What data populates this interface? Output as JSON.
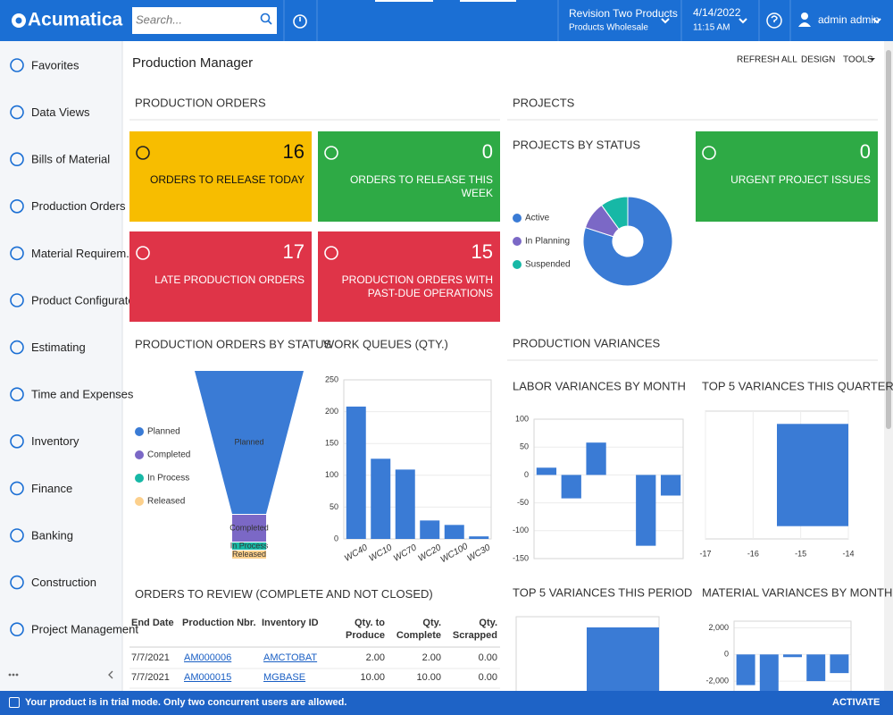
{
  "topbar": {
    "logo": "Acumatica",
    "search_placeholder": "Search...",
    "company": "Revision Two Products",
    "branch": "Products Wholesale",
    "date": "4/14/2022",
    "time": "11:15 AM",
    "user": "admin admin"
  },
  "sidebar": {
    "items": [
      "Favorites",
      "Data Views",
      "Bills of Material",
      "Production Orders",
      "Material Requirem...",
      "Product Configurator",
      "Estimating",
      "Time and Expenses",
      "Inventory",
      "Finance",
      "Banking",
      "Construction",
      "Project Management"
    ]
  },
  "page": {
    "title": "Production Manager",
    "actions": [
      "REFRESH ALL",
      "DESIGN",
      "TOOLS"
    ]
  },
  "sections": {
    "production_orders": "PRODUCTION ORDERS",
    "projects": "PROJECTS",
    "production_variances": "PRODUCTION VARIANCES"
  },
  "tiles": [
    {
      "value": 16,
      "label": "ORDERS TO RELEASE TODAY",
      "color": "#f7bd00"
    },
    {
      "value": 0,
      "label": "ORDERS TO RELEASE THIS WEEK",
      "color": "#2eaa45"
    },
    {
      "value": 17,
      "label": "LATE PRODUCTION ORDERS",
      "color": "#df3448"
    },
    {
      "value": 15,
      "label": "PRODUCTION ORDERS WITH PAST-DUE OPERATIONS",
      "color": "#df3448"
    },
    {
      "value": 0,
      "label": "URGENT PROJECT ISSUES",
      "color": "#2eaa45"
    }
  ],
  "charts": [
    {
      "type": "pie",
      "title": "PROJECTS BY STATUS",
      "categories": [
        "Active",
        "In Planning",
        "Suspended"
      ],
      "values": [
        80,
        10,
        10
      ],
      "colors": [
        "#3a7bd5",
        "#7b68c6",
        "#17b8a6"
      ]
    },
    {
      "type": "funnel",
      "title": "PRODUCTION ORDERS BY STATUS",
      "categories": [
        "Planned",
        "Completed",
        "In Process",
        "Released"
      ],
      "values": [
        160,
        30,
        8,
        9
      ],
      "colors": [
        "#3a7bd5",
        "#7b68c6",
        "#17b8a6",
        "#fcd08c"
      ]
    },
    {
      "type": "bar",
      "title": "WORK QUEUES (QTY.)",
      "categories": [
        "WC40",
        "WC10",
        "WC70",
        "WC20",
        "WC100",
        "WC30"
      ],
      "values": [
        208,
        126,
        109,
        29,
        22,
        4
      ],
      "color": "#3a7bd5",
      "ylim": [
        0,
        250
      ],
      "yticks": [
        0,
        50,
        100,
        150,
        200,
        250
      ],
      "grid": true
    },
    {
      "type": "bar",
      "title": "LABOR VARIANCES BY MONTH",
      "categories": [
        null,
        null,
        null,
        null,
        null,
        null
      ],
      "values": [
        13,
        -42,
        58,
        0,
        -127,
        -37
      ],
      "color": "#3a7bd5",
      "ylim": [
        -150,
        100
      ],
      "yticks": [
        -150,
        -100,
        -50,
        0,
        50,
        100
      ],
      "grid": true
    },
    {
      "type": "barh",
      "title": "TOP 5 VARIANCES THIS QUARTER",
      "categories": [
        null
      ],
      "values": [
        -15.5
      ],
      "color": "#3a7bd5",
      "xlim": [
        -17,
        -14
      ],
      "xticks": [
        -17,
        -16,
        -15,
        -14
      ],
      "grid": true
    },
    {
      "type": "barh",
      "title": "TOP 5 VARIANCES THIS PERIOD",
      "categories": [
        null
      ],
      "values": [
        -1
      ],
      "color": "#3a7bd5"
    },
    {
      "type": "bar",
      "title": "MATERIAL VARIANCES BY MONTH",
      "categories": [
        null,
        null,
        null,
        null,
        null
      ],
      "values": [
        -2300,
        -3000,
        -200,
        -2000,
        -1400
      ],
      "color": "#3a7bd5",
      "ylim": [
        -2800,
        2500
      ],
      "yticks": [
        {
          "value": 2000,
          "label": "2,000"
        },
        0,
        {
          "value": -2000,
          "label": "-2,000"
        }
      ],
      "grid": true
    }
  ],
  "table": {
    "title": "ORDERS TO REVIEW (COMPLETE AND NOT CLOSED)",
    "columns": [
      "End Date",
      "Production Nbr.",
      "Inventory ID",
      "Qty. to Produce",
      "Qty. Complete",
      "Qty. Scrapped"
    ],
    "rows": [
      [
        "7/7/2021",
        "AM000006",
        "AMCTOBAT",
        "2.00",
        "2.00",
        "0.00"
      ],
      [
        "7/7/2021",
        "AM000015",
        "MGBASE",
        "10.00",
        "10.00",
        "0.00"
      ]
    ]
  },
  "footer": {
    "message": "Your product is in trial mode. Only two concurrent users are allowed.",
    "action": "ACTIVATE"
  }
}
